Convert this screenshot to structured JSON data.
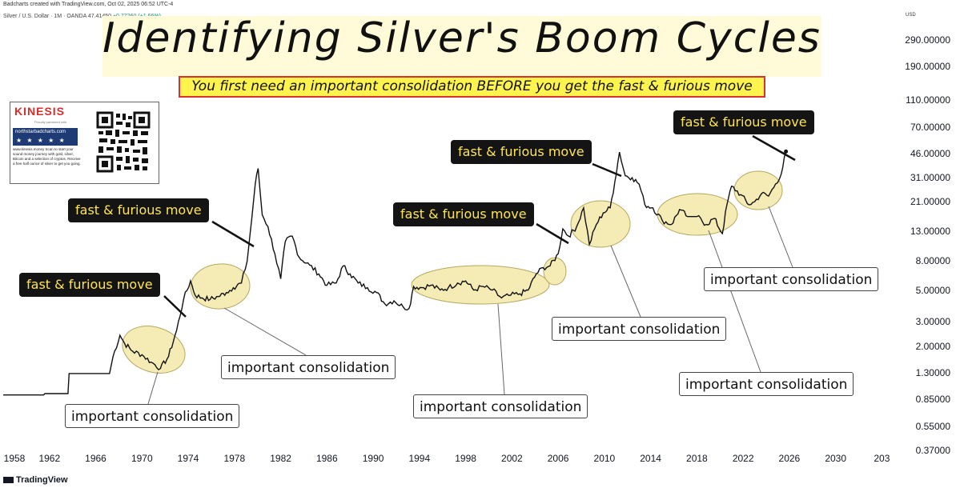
{
  "header": {
    "credit": "Badcharts created with TradingView.com, Oct 02, 2025 06:52 UTC-4",
    "symbol": "Silver / U.S. Dollar · 1M · OANDA",
    "last_price": "47.41450",
    "change": "+0.77260 (+1.66%)",
    "currency": "USD"
  },
  "title": "Identifying Silver's Boom Cycles",
  "subtitle": "You first need an important consolidation BEFORE you get the fast & furious move",
  "kinesis": {
    "logo": "KINESIS",
    "tagline": "Proudly partnered with",
    "site": "northstarbadcharts.com",
    "stars": "★ ★ ★ ★ ★",
    "promo": "www.kinesis.money Scan to start your sound money journey with gold, silver, Bitcoin and a selection of cryptos. Receive a free half ounce of silver to get you going."
  },
  "callouts": {
    "fast": "fast & furious move",
    "consolidation": "important consolidation"
  },
  "footer": {
    "brand": "TradingView"
  },
  "colors": {
    "ellipse_fill": "#f3e7a8",
    "ellipse_stroke": "#b5a860",
    "price_line": "#111111",
    "callout_dark_bg": "#141414",
    "callout_dark_text": "#ffe64d",
    "subtitle_bg": "#fff34d",
    "subtitle_border": "#d93030"
  },
  "chart_data": {
    "type": "line",
    "scale": "log",
    "title": "Identifying Silver's Boom Cycles",
    "xlabel": "",
    "ylabel": "",
    "xlim": [
      1958,
      2030
    ],
    "ylim": [
      0.37,
      290
    ],
    "x_ticks": [
      "1958",
      "1962",
      "1966",
      "1970",
      "1974",
      "1978",
      "1982",
      "1986",
      "1990",
      "1994",
      "1998",
      "2002",
      "2006",
      "2010",
      "2014",
      "2018",
      "2022",
      "2026",
      "2030",
      "203"
    ],
    "y_ticks": [
      "290.00000",
      "190.00000",
      "110.00000",
      "70.00000",
      "46.00000",
      "31.00000",
      "21.00000",
      "13.00000",
      "8.00000",
      "5.00000",
      "3.00000",
      "2.00000",
      "1.30000",
      "0.85000",
      "0.55000",
      "0.37000"
    ],
    "series": [
      {
        "x": [
          1958,
          1961.5,
          1961.6,
          1963.6,
          1963.7,
          1967.2,
          1967.5,
          1968.1,
          1968.5,
          1969.2,
          1970.0,
          1970.8,
          1971.6,
          1972.3,
          1973.0,
          1973.6,
          1974.2,
          1974.6,
          1975.2,
          1975.9,
          1976.6,
          1977.3,
          1977.9,
          1978.6,
          1979.1,
          1979.5,
          1979.8,
          1980.05,
          1980.4,
          1980.9,
          1981.5,
          1982.0,
          1982.4,
          1983.0,
          1983.6,
          1984.5,
          1985.3,
          1986.0,
          1986.8,
          1987.4,
          1988.0,
          1988.7,
          1989.5,
          1990.3,
          1991.0,
          1991.8,
          1992.6,
          1993.1,
          1993.5,
          1994.2,
          1995.0,
          1995.8,
          1996.5,
          1997.3,
          1998.0,
          1998.7,
          1999.5,
          2000.3,
          2001.1,
          2001.9,
          2002.7,
          2003.4,
          2004.1,
          2004.7,
          2005.3,
          2006.0,
          2006.4,
          2006.9,
          2007.6,
          2008.2,
          2008.7,
          2009.3,
          2009.9,
          2010.5,
          2010.9,
          2011.3,
          2011.8,
          2012.4,
          2013.0,
          2013.5,
          2014.2,
          2015.0,
          2015.8,
          2016.5,
          2017.2,
          2018.0,
          2018.8,
          2019.5,
          2020.2,
          2020.6,
          2021.0,
          2021.8,
          2022.5,
          2023.0,
          2023.6,
          2024.2,
          2024.8,
          2025.3,
          2025.7
        ],
        "values": [
          0.91,
          0.91,
          0.93,
          0.93,
          1.29,
          1.29,
          1.7,
          2.4,
          2.1,
          1.85,
          1.75,
          1.55,
          1.4,
          1.7,
          2.6,
          4.3,
          5.8,
          4.6,
          4.4,
          4.3,
          4.5,
          4.8,
          5.2,
          5.6,
          8.0,
          16.0,
          28.0,
          36.0,
          17.0,
          14.0,
          9.0,
          6.0,
          11.0,
          12.0,
          8.5,
          7.5,
          6.5,
          5.4,
          5.6,
          7.4,
          6.5,
          5.6,
          5.2,
          4.8,
          4.0,
          4.2,
          3.8,
          3.7,
          5.3,
          5.2,
          5.4,
          5.0,
          5.2,
          5.6,
          5.8,
          5.0,
          5.3,
          5.0,
          4.4,
          4.6,
          4.7,
          5.0,
          6.5,
          7.2,
          7.4,
          9.0,
          13.5,
          12.0,
          14.0,
          19.0,
          10.5,
          14.5,
          17.5,
          19.0,
          29.0,
          47.0,
          32.0,
          31.0,
          28.0,
          20.0,
          19.0,
          15.5,
          14.5,
          18.5,
          16.5,
          16.5,
          14.5,
          16.0,
          12.5,
          20.0,
          27.0,
          23.5,
          20.0,
          21.0,
          24.0,
          23.0,
          28.0,
          33.0,
          47.4
        ]
      }
    ]
  }
}
